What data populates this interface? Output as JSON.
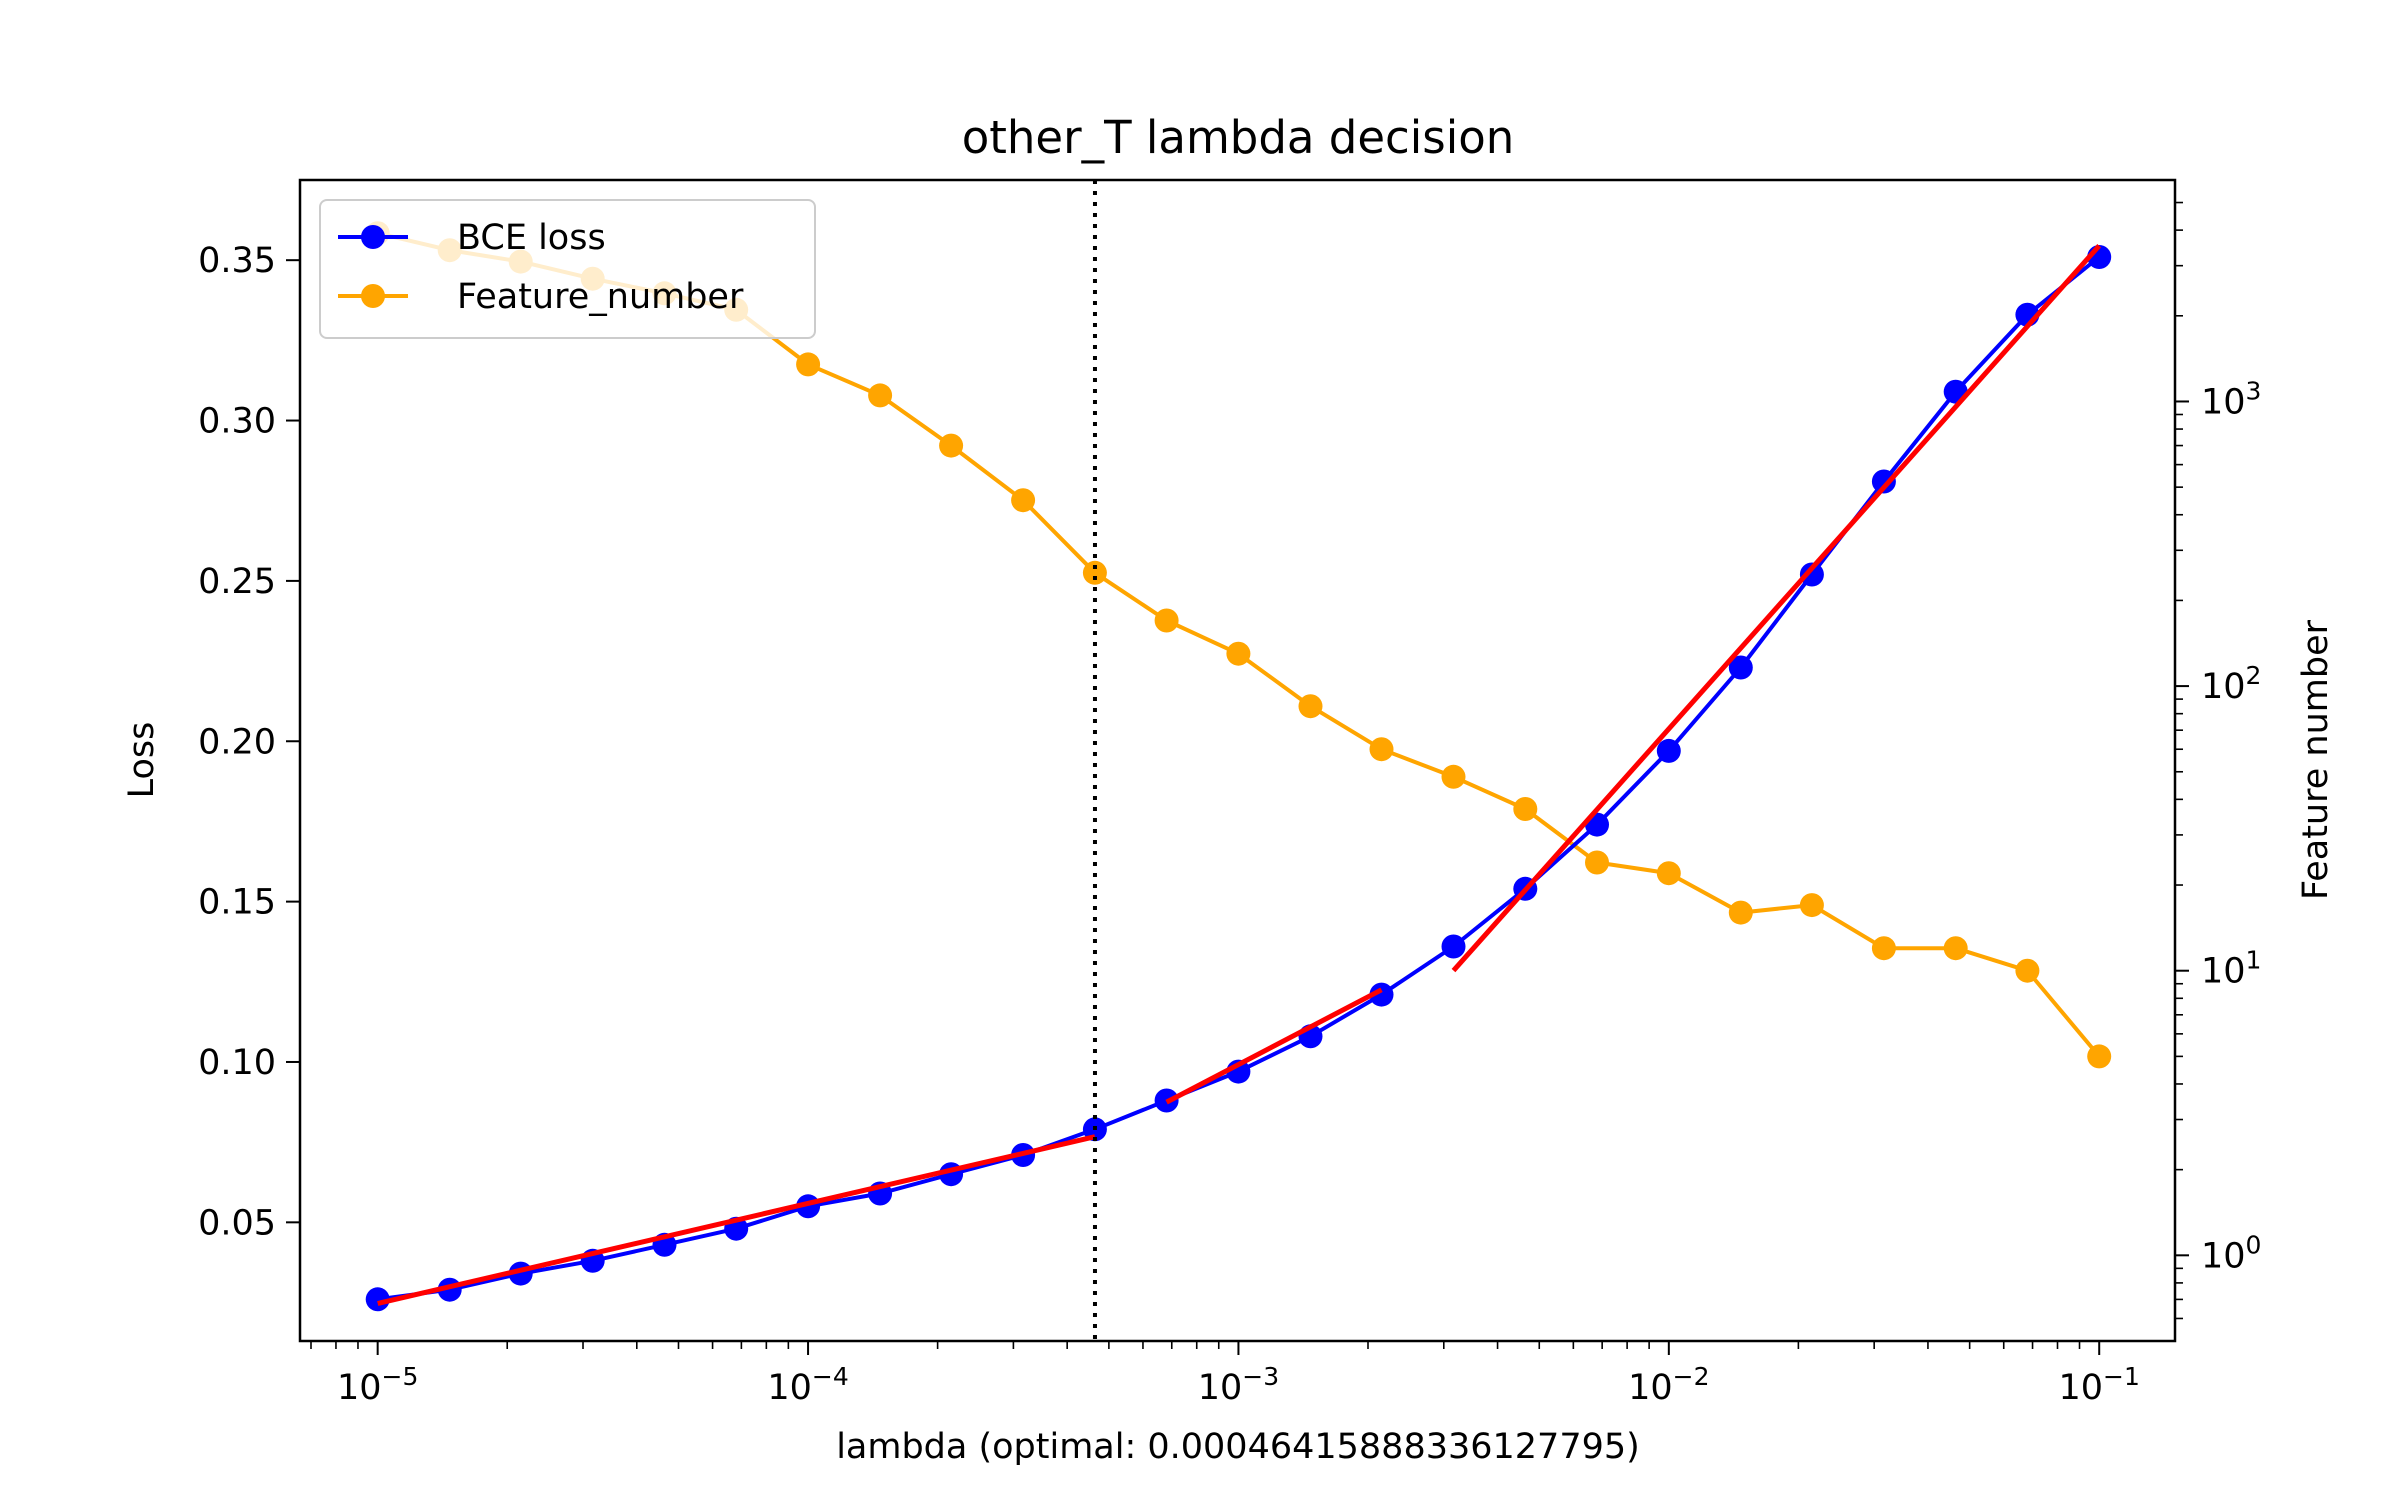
{
  "chart_data": {
    "type": "line",
    "title": "other_T lambda decision",
    "xlabel": "lambda (optimal: 0.00046415888336127795)",
    "ylabel": "Loss",
    "y2label": "Feature number",
    "x_scale": "log",
    "y2_scale": "log",
    "xlim": [
      6.6e-06,
      0.15
    ],
    "ylim": [
      0.013,
      0.375
    ],
    "y2lim": [
      0.5,
      6000
    ],
    "x_tick_labels": [
      "10^-5",
      "10^-4",
      "10^-3",
      "10^-2",
      "10^-1"
    ],
    "x_ticks": [
      1e-05,
      0.0001,
      0.001,
      0.01,
      0.1
    ],
    "y_ticks": [
      0.05,
      0.1,
      0.15,
      0.2,
      0.25,
      0.3,
      0.35
    ],
    "y_tick_labels": [
      "0.05",
      "0.10",
      "0.15",
      "0.20",
      "0.25",
      "0.30",
      "0.35"
    ],
    "y2_tick_labels": [
      "10^0",
      "10^1",
      "10^2",
      "10^3"
    ],
    "y2_ticks": [
      1,
      10,
      100,
      1000
    ],
    "optimal_lambda": 0.00046415888336127795,
    "legend_position": "upper left",
    "x": [
      1e-05,
      1.47e-05,
      2.15e-05,
      3.16e-05,
      4.64e-05,
      6.81e-05,
      0.0001,
      0.000147,
      0.000215,
      0.000316,
      0.000464,
      0.000681,
      0.001,
      0.00147,
      0.00215,
      0.00316,
      0.00464,
      0.00681,
      0.01,
      0.0147,
      0.0215,
      0.0316,
      0.0464,
      0.0681,
      0.1
    ],
    "series": [
      {
        "name": "BCE loss",
        "axis": "left",
        "color": "#0000ff",
        "values": [
          0.026,
          0.029,
          0.034,
          0.038,
          0.043,
          0.048,
          0.055,
          0.059,
          0.065,
          0.071,
          0.079,
          0.088,
          0.097,
          0.108,
          0.121,
          0.136,
          0.154,
          0.174,
          0.197,
          0.223,
          0.252,
          0.281,
          0.309,
          0.333,
          0.351
        ]
      },
      {
        "name": "Feature_number",
        "axis": "right",
        "color": "#ffa500",
        "values": [
          3900,
          3400,
          3100,
          2700,
          2400,
          2100,
          1350,
          1050,
          700,
          450,
          250,
          170,
          130,
          85,
          60,
          48,
          37,
          24,
          22,
          16,
          17,
          12,
          12,
          10,
          5
        ]
      }
    ],
    "fit_lines": [
      {
        "color": "#ff0000",
        "x": [
          1e-05,
          0.000464
        ],
        "y": [
          0.0247,
          0.0767
        ]
      },
      {
        "color": "#ff0000",
        "x": [
          0.000681,
          0.00215
        ],
        "y": [
          0.0875,
          0.1225
        ]
      },
      {
        "color": "#ff0000",
        "x": [
          0.00316,
          0.1
        ],
        "y": [
          0.1285,
          0.3545
        ]
      }
    ],
    "legend": {
      "entries": [
        {
          "label": "BCE loss",
          "color": "#0000ff"
        },
        {
          "label": "Feature_number",
          "color": "#ffa500"
        }
      ]
    }
  }
}
